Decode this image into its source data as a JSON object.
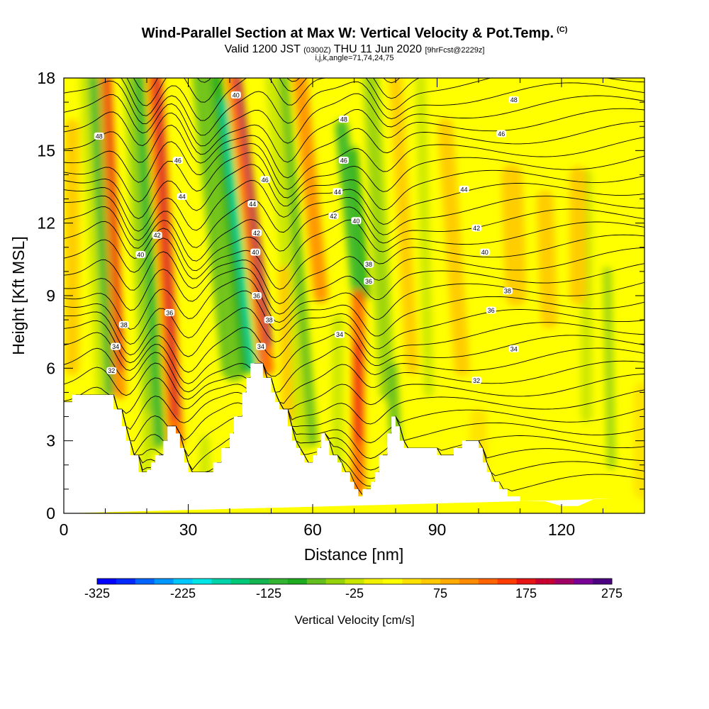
{
  "title": {
    "main": "Wind-Parallel Section at Max W: Vertical Velocity & Pot.Temp.",
    "copyright": "(C)",
    "valid_prefix": "Valid 1200 JST",
    "valid_z": "(0300Z)",
    "valid_date": "THU 11 Jun 2020",
    "forecast": "[9hrFcst@2229z]",
    "indices": "i,j,k,angle=71,74,24,75"
  },
  "chart_data": {
    "type": "contour-section",
    "xlabel": "Distance [nm]",
    "ylabel": "Height [Kft MSL]",
    "xlim": [
      0,
      140
    ],
    "ylim": [
      0,
      18
    ],
    "x_ticks": [
      0,
      30,
      60,
      90,
      120
    ],
    "x_tick_labels": [
      "0",
      "30",
      "60",
      "90",
      "120"
    ],
    "y_ticks": [
      0,
      3,
      6,
      9,
      12,
      15,
      18
    ],
    "y_tick_labels": [
      "0",
      "3",
      "6",
      "9",
      "12",
      "15",
      "18"
    ],
    "colorbar": {
      "label": "Vertical Velocity [cm/s]",
      "labels": [
        "-325",
        "-225",
        "-125",
        "-25",
        "75",
        "175",
        "275"
      ],
      "label_values": [
        -325,
        -225,
        -125,
        -25,
        75,
        175,
        275
      ],
      "min": -325,
      "max": 275,
      "colors": [
        "#0000ff",
        "#0028ff",
        "#0064ff",
        "#0096ff",
        "#00c8ff",
        "#00e6e6",
        "#00d2aa",
        "#00c878",
        "#14b450",
        "#32b432",
        "#1eaa1e",
        "#64be1e",
        "#96d20a",
        "#c8e600",
        "#f0f000",
        "#ffff00",
        "#ffe100",
        "#ffc800",
        "#ffaa00",
        "#ff8c00",
        "#ff6400",
        "#ff3c00",
        "#e61414",
        "#c80032",
        "#a00064",
        "#780096",
        "#4b0082"
      ]
    },
    "terrain_profile": {
      "x": [
        0,
        2,
        2,
        12,
        12,
        14,
        14,
        15,
        15,
        16,
        16,
        18,
        18,
        20,
        20,
        21,
        21,
        22,
        22,
        24,
        24,
        25,
        25,
        27,
        27,
        28,
        28,
        29,
        29,
        30,
        30,
        32,
        32,
        33,
        33,
        34,
        34,
        36,
        36,
        38,
        38,
        40,
        40,
        41,
        41,
        43,
        43,
        44,
        44,
        45,
        45,
        46,
        46,
        48,
        48,
        50,
        50,
        51,
        51,
        52,
        52,
        54,
        54,
        55,
        55,
        56,
        56,
        57,
        57,
        58,
        58,
        59,
        59,
        60,
        60,
        61,
        61,
        62,
        62,
        63,
        63,
        64,
        64,
        66,
        66,
        67,
        67,
        69,
        69,
        70,
        70,
        71,
        71,
        72,
        72,
        74,
        74,
        75,
        75,
        76,
        76,
        78,
        78,
        79,
        79,
        80,
        80,
        81,
        81,
        82,
        82,
        84,
        84,
        86,
        86,
        88,
        88,
        90,
        90,
        92,
        92,
        94,
        94,
        96,
        96,
        98,
        98,
        100,
        100,
        101,
        101,
        102,
        102,
        103,
        103,
        105,
        105,
        107,
        107,
        110,
        110,
        112,
        112,
        116,
        116,
        120,
        120,
        124,
        124,
        128,
        128,
        132,
        132,
        134,
        134,
        140
      ],
      "y": [
        4.6,
        4.6,
        4.9,
        4.9,
        4.3,
        4.3,
        3.6,
        3.6,
        3.0,
        3.0,
        2.4,
        2.4,
        1.7,
        1.7,
        1.8,
        1.8,
        2.1,
        2.1,
        2.4,
        2.4,
        3.0,
        3.0,
        3.6,
        3.6,
        3.3,
        3.3,
        2.7,
        2.7,
        2.1,
        2.1,
        1.7,
        1.7,
        1.7,
        1.7,
        1.7,
        1.7,
        1.7,
        1.7,
        2.1,
        2.1,
        2.7,
        2.7,
        3.3,
        3.3,
        4.0,
        4.0,
        5.0,
        5.0,
        5.6,
        5.6,
        6.2,
        6.2,
        6.2,
        6.2,
        5.6,
        5.6,
        5.0,
        5.0,
        4.6,
        4.6,
        4.3,
        4.3,
        3.6,
        3.6,
        3.0,
        3.0,
        2.7,
        2.7,
        2.4,
        2.4,
        2.1,
        2.1,
        2.1,
        2.1,
        2.4,
        2.4,
        2.7,
        2.7,
        3.3,
        3.3,
        3.0,
        3.0,
        2.4,
        2.4,
        2.1,
        2.1,
        1.7,
        1.7,
        1.3,
        1.3,
        1.0,
        1.0,
        0.7,
        0.7,
        1.0,
        1.0,
        1.3,
        1.3,
        1.7,
        1.7,
        2.4,
        2.4,
        3.3,
        3.3,
        4.0,
        4.0,
        3.6,
        3.6,
        3.0,
        3.0,
        2.7,
        2.7,
        2.7,
        2.7,
        2.7,
        2.7,
        2.7,
        2.7,
        2.4,
        2.4,
        2.4,
        2.4,
        2.7,
        2.7,
        3.0,
        3.0,
        3.0,
        3.0,
        2.7,
        2.7,
        2.1,
        2.1,
        1.7,
        1.7,
        1.3,
        1.3,
        1.0,
        1.0,
        0.7,
        0.7,
        0.5,
        0.5,
        0.5,
        0.5,
        0.5,
        0.3,
        0.3,
        0.3,
        0.3,
        0.6,
        0.6,
        0.6
      ]
    },
    "isentrope_labels": [
      {
        "x": 8.5,
        "y": 15.6,
        "value": "48"
      },
      {
        "x": 41.5,
        "y": 17.3,
        "value": "40"
      },
      {
        "x": 27.5,
        "y": 14.6,
        "value": "46"
      },
      {
        "x": 28.5,
        "y": 13.1,
        "value": "44"
      },
      {
        "x": 22.5,
        "y": 11.5,
        "value": "42"
      },
      {
        "x": 18.5,
        "y": 10.7,
        "value": "40"
      },
      {
        "x": 14.5,
        "y": 7.8,
        "value": "38"
      },
      {
        "x": 25.5,
        "y": 8.3,
        "value": "36"
      },
      {
        "x": 12.5,
        "y": 6.9,
        "value": "34"
      },
      {
        "x": 11.5,
        "y": 5.9,
        "value": "32"
      },
      {
        "x": 48.5,
        "y": 13.8,
        "value": "46"
      },
      {
        "x": 45.5,
        "y": 12.8,
        "value": "44"
      },
      {
        "x": 46.5,
        "y": 11.6,
        "value": "42"
      },
      {
        "x": 46.2,
        "y": 10.8,
        "value": "40"
      },
      {
        "x": 46.5,
        "y": 9.0,
        "value": "36"
      },
      {
        "x": 49.5,
        "y": 8.0,
        "value": "38"
      },
      {
        "x": 47.5,
        "y": 6.9,
        "value": "34"
      },
      {
        "x": 67.5,
        "y": 16.3,
        "value": "48"
      },
      {
        "x": 67.5,
        "y": 14.6,
        "value": "46"
      },
      {
        "x": 66.0,
        "y": 13.3,
        "value": "44"
      },
      {
        "x": 65.0,
        "y": 12.3,
        "value": "42"
      },
      {
        "x": 70.5,
        "y": 12.1,
        "value": "40"
      },
      {
        "x": 73.5,
        "y": 10.3,
        "value": "38"
      },
      {
        "x": 73.5,
        "y": 9.6,
        "value": "36"
      },
      {
        "x": 66.5,
        "y": 7.4,
        "value": "34"
      },
      {
        "x": 108.5,
        "y": 17.1,
        "value": "48"
      },
      {
        "x": 105.5,
        "y": 15.7,
        "value": "46"
      },
      {
        "x": 96.5,
        "y": 13.4,
        "value": "44"
      },
      {
        "x": 99.5,
        "y": 11.8,
        "value": "42"
      },
      {
        "x": 101.5,
        "y": 10.8,
        "value": "40"
      },
      {
        "x": 107.0,
        "y": 9.2,
        "value": "38"
      },
      {
        "x": 103.0,
        "y": 8.4,
        "value": "36"
      },
      {
        "x": 108.5,
        "y": 6.8,
        "value": "34"
      },
      {
        "x": 99.5,
        "y": 5.5,
        "value": "32"
      }
    ]
  }
}
